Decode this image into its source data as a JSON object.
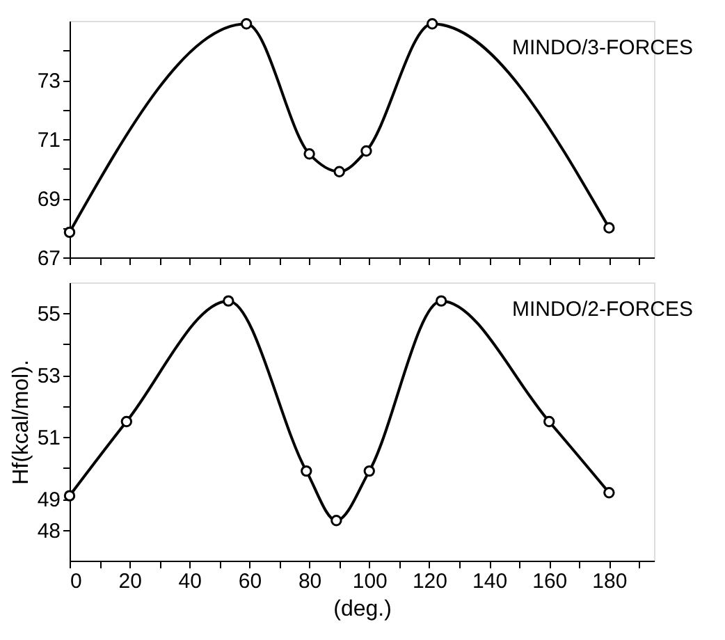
{
  "chart_data": [
    {
      "type": "line",
      "marker": "circle",
      "line_style": "solid",
      "grid": false,
      "legend": false,
      "tick_labels": "y",
      "xlim": [
        0,
        195
      ],
      "xticks": [
        {
          "value": 0,
          "label": null
        },
        {
          "value": 10,
          "label": null
        },
        {
          "value": 20,
          "label": null
        },
        {
          "value": 30,
          "label": null
        },
        {
          "value": 40,
          "label": null
        },
        {
          "value": 50,
          "label": null
        },
        {
          "value": 60,
          "label": null
        },
        {
          "value": 70,
          "label": null
        },
        {
          "value": 80,
          "label": null
        },
        {
          "value": 90,
          "label": null
        },
        {
          "value": 100,
          "label": null
        },
        {
          "value": 110,
          "label": null
        },
        {
          "value": 120,
          "label": null
        },
        {
          "value": 130,
          "label": null
        },
        {
          "value": 140,
          "label": null
        },
        {
          "value": 150,
          "label": null
        },
        {
          "value": 160,
          "label": null
        },
        {
          "value": 170,
          "label": null
        },
        {
          "value": 180,
          "label": null
        },
        {
          "value": 190,
          "label": null
        }
      ],
      "ylim": [
        67,
        75
      ],
      "yticks": [
        67,
        {
          "value": 68,
          "label": null
        },
        69,
        {
          "value": 70,
          "label": null
        },
        71,
        {
          "value": 72,
          "label": null
        },
        73,
        {
          "value": 74,
          "label": null
        }
      ],
      "series": [
        {
          "name": "MINDO/3-FORCES",
          "color": "#000000",
          "x": [
            0,
            59,
            80,
            90,
            99,
            121,
            180
          ],
          "values": [
            67.85,
            74.9,
            70.5,
            69.9,
            70.6,
            74.9,
            68.0
          ]
        }
      ]
    },
    {
      "type": "line",
      "marker": "circle",
      "line_style": "solid",
      "grid": false,
      "legend": false,
      "xlabel": "(deg.)",
      "ylabel": "Hf(kcal/mol).",
      "xlim": [
        0,
        195
      ],
      "xticks": [
        0,
        {
          "value": 10,
          "label": null
        },
        20,
        {
          "value": 30,
          "label": null
        },
        40,
        {
          "value": 50,
          "label": null
        },
        60,
        {
          "value": 70,
          "label": null
        },
        80,
        {
          "value": 90,
          "label": null
        },
        100,
        {
          "value": 110,
          "label": null
        },
        120,
        {
          "value": 130,
          "label": null
        },
        140,
        {
          "value": 150,
          "label": null
        },
        160,
        {
          "value": 170,
          "label": null
        },
        180,
        {
          "value": 190,
          "label": null
        }
      ],
      "ylim": [
        47,
        56
      ],
      "yticks": [
        48,
        49,
        {
          "value": 50,
          "label": null
        },
        51,
        {
          "value": 52,
          "label": null
        },
        53,
        {
          "value": 54,
          "label": null
        },
        55
      ],
      "series": [
        {
          "name": "MINDO/2-FORCES",
          "color": "#000000",
          "x": [
            0,
            19,
            53,
            79,
            89,
            100,
            124,
            160,
            180
          ],
          "values": [
            49.1,
            51.5,
            55.4,
            49.9,
            48.3,
            49.9,
            55.4,
            51.5,
            49.2
          ]
        }
      ]
    }
  ]
}
